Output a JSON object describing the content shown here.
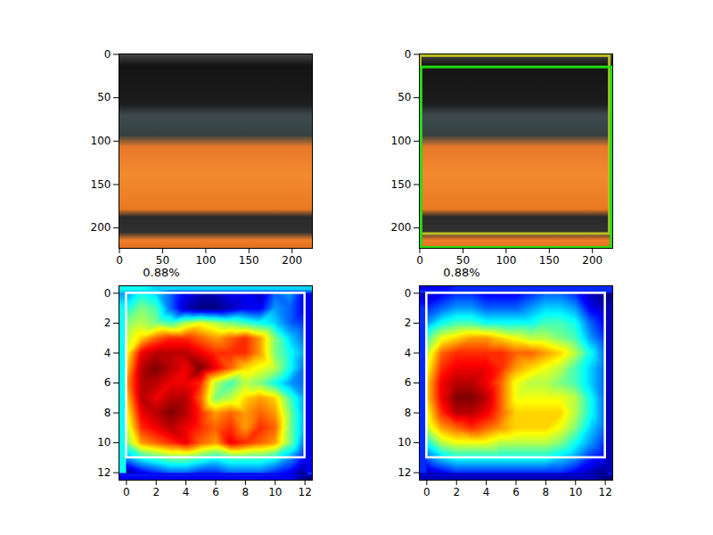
{
  "chart_data": [
    {
      "type": "image",
      "xlim": [
        -0.5,
        223.5
      ],
      "ylim": [
        223.5,
        -0.5
      ],
      "xticks": [
        0,
        50,
        100,
        150,
        200
      ],
      "yticks": [
        0,
        50,
        100,
        150,
        200
      ]
    },
    {
      "type": "image",
      "xlim": [
        -0.5,
        223.5
      ],
      "ylim": [
        223.5,
        -0.5
      ],
      "xticks": [
        0,
        50,
        100,
        150,
        200
      ],
      "yticks": [
        0,
        50,
        100,
        150,
        200
      ],
      "boxes": [
        {
          "x1": 1,
          "y1": 2,
          "x2": 220,
          "y2": 207,
          "color": "#bcbd22"
        },
        {
          "x1": 2,
          "y1": 15,
          "x2": 222,
          "y2": 223,
          "color": "#22dd11"
        }
      ]
    },
    {
      "type": "heatmap",
      "title": "0.88%",
      "xlim": [
        -0.5,
        12.5
      ],
      "ylim": [
        12.5,
        -0.5
      ],
      "xticks": [
        0,
        2,
        4,
        6,
        8,
        10,
        12
      ],
      "yticks": [
        0,
        2,
        4,
        6,
        8,
        10,
        12
      ],
      "box": {
        "x1": 0,
        "y1": 0,
        "x2": 12,
        "y2": 11,
        "color": "#ffffff"
      },
      "cells": [
        [
          0.35,
          0.45,
          0.4,
          0.3,
          0.2,
          0.15,
          0.15,
          0.2,
          0.2,
          0.15,
          0.3,
          0.35,
          0.2
        ],
        [
          0.45,
          0.55,
          0.5,
          0.3,
          0.15,
          0.1,
          0.1,
          0.15,
          0.2,
          0.2,
          0.35,
          0.3,
          0.2
        ],
        [
          0.55,
          0.6,
          0.55,
          0.5,
          0.6,
          0.65,
          0.6,
          0.55,
          0.5,
          0.45,
          0.4,
          0.3,
          0.25
        ],
        [
          0.6,
          0.7,
          0.8,
          0.85,
          0.85,
          0.8,
          0.75,
          0.8,
          0.85,
          0.75,
          0.55,
          0.4,
          0.3
        ],
        [
          0.65,
          0.9,
          0.95,
          0.95,
          0.95,
          0.9,
          0.85,
          0.85,
          0.85,
          0.75,
          0.55,
          0.45,
          0.35
        ],
        [
          0.7,
          0.95,
          1.0,
          0.95,
          0.9,
          1.0,
          0.9,
          0.8,
          0.7,
          0.65,
          0.6,
          0.45,
          0.3
        ],
        [
          0.75,
          0.95,
          0.95,
          0.9,
          0.9,
          0.85,
          0.6,
          0.5,
          0.6,
          0.55,
          0.45,
          0.35,
          0.3
        ],
        [
          0.7,
          0.95,
          0.9,
          0.95,
          0.95,
          0.8,
          0.55,
          0.6,
          0.7,
          0.75,
          0.7,
          0.5,
          0.35
        ],
        [
          0.65,
          0.9,
          0.95,
          1.0,
          0.95,
          0.85,
          0.75,
          0.8,
          0.75,
          0.8,
          0.75,
          0.55,
          0.35
        ],
        [
          0.6,
          0.85,
          0.9,
          0.95,
          0.9,
          0.85,
          0.8,
          0.85,
          0.75,
          0.85,
          0.8,
          0.55,
          0.35
        ],
        [
          0.55,
          0.75,
          0.8,
          0.85,
          0.9,
          0.8,
          0.75,
          0.9,
          0.85,
          0.8,
          0.75,
          0.55,
          0.3
        ],
        [
          0.35,
          0.45,
          0.5,
          0.55,
          0.55,
          0.5,
          0.45,
          0.5,
          0.5,
          0.5,
          0.45,
          0.35,
          0.2
        ],
        [
          0.1,
          0.2,
          0.25,
          0.3,
          0.3,
          0.25,
          0.25,
          0.3,
          0.3,
          0.3,
          0.25,
          0.2,
          0.1
        ]
      ]
    },
    {
      "type": "heatmap",
      "title": "0.88%",
      "xlim": [
        -0.5,
        12.5
      ],
      "ylim": [
        12.5,
        -0.5
      ],
      "xticks": [
        0,
        2,
        4,
        6,
        8,
        10,
        12
      ],
      "yticks": [
        0,
        2,
        4,
        6,
        8,
        10,
        12
      ],
      "box": {
        "x1": 0,
        "y1": 0,
        "x2": 12,
        "y2": 11,
        "color": "#ffffff"
      },
      "cells": [
        [
          0.15,
          0.2,
          0.25,
          0.25,
          0.2,
          0.2,
          0.2,
          0.25,
          0.3,
          0.3,
          0.25,
          0.15,
          0.1
        ],
        [
          0.25,
          0.3,
          0.35,
          0.35,
          0.3,
          0.3,
          0.3,
          0.35,
          0.4,
          0.4,
          0.35,
          0.2,
          0.15
        ],
        [
          0.35,
          0.45,
          0.5,
          0.5,
          0.45,
          0.45,
          0.45,
          0.45,
          0.5,
          0.5,
          0.45,
          0.3,
          0.2
        ],
        [
          0.5,
          0.65,
          0.7,
          0.75,
          0.75,
          0.7,
          0.65,
          0.6,
          0.6,
          0.55,
          0.5,
          0.35,
          0.25
        ],
        [
          0.6,
          0.8,
          0.85,
          0.85,
          0.85,
          0.85,
          0.8,
          0.8,
          0.75,
          0.7,
          0.6,
          0.45,
          0.3
        ],
        [
          0.65,
          0.85,
          0.9,
          0.9,
          0.9,
          0.85,
          0.75,
          0.7,
          0.65,
          0.6,
          0.5,
          0.4,
          0.3
        ],
        [
          0.7,
          0.9,
          0.95,
          0.95,
          0.9,
          0.8,
          0.65,
          0.6,
          0.6,
          0.55,
          0.5,
          0.4,
          0.3
        ],
        [
          0.7,
          0.9,
          1.0,
          1.0,
          0.95,
          0.8,
          0.65,
          0.65,
          0.65,
          0.65,
          0.6,
          0.45,
          0.3
        ],
        [
          0.65,
          0.85,
          0.95,
          0.95,
          0.9,
          0.8,
          0.7,
          0.7,
          0.7,
          0.7,
          0.6,
          0.45,
          0.3
        ],
        [
          0.6,
          0.75,
          0.8,
          0.85,
          0.8,
          0.75,
          0.7,
          0.7,
          0.7,
          0.65,
          0.55,
          0.4,
          0.3
        ],
        [
          0.45,
          0.6,
          0.65,
          0.65,
          0.65,
          0.6,
          0.6,
          0.6,
          0.6,
          0.55,
          0.45,
          0.35,
          0.25
        ],
        [
          0.3,
          0.4,
          0.45,
          0.45,
          0.45,
          0.45,
          0.45,
          0.45,
          0.45,
          0.4,
          0.35,
          0.25,
          0.2
        ],
        [
          0.15,
          0.2,
          0.25,
          0.25,
          0.25,
          0.25,
          0.25,
          0.25,
          0.25,
          0.25,
          0.2,
          0.15,
          0.1
        ]
      ]
    }
  ]
}
